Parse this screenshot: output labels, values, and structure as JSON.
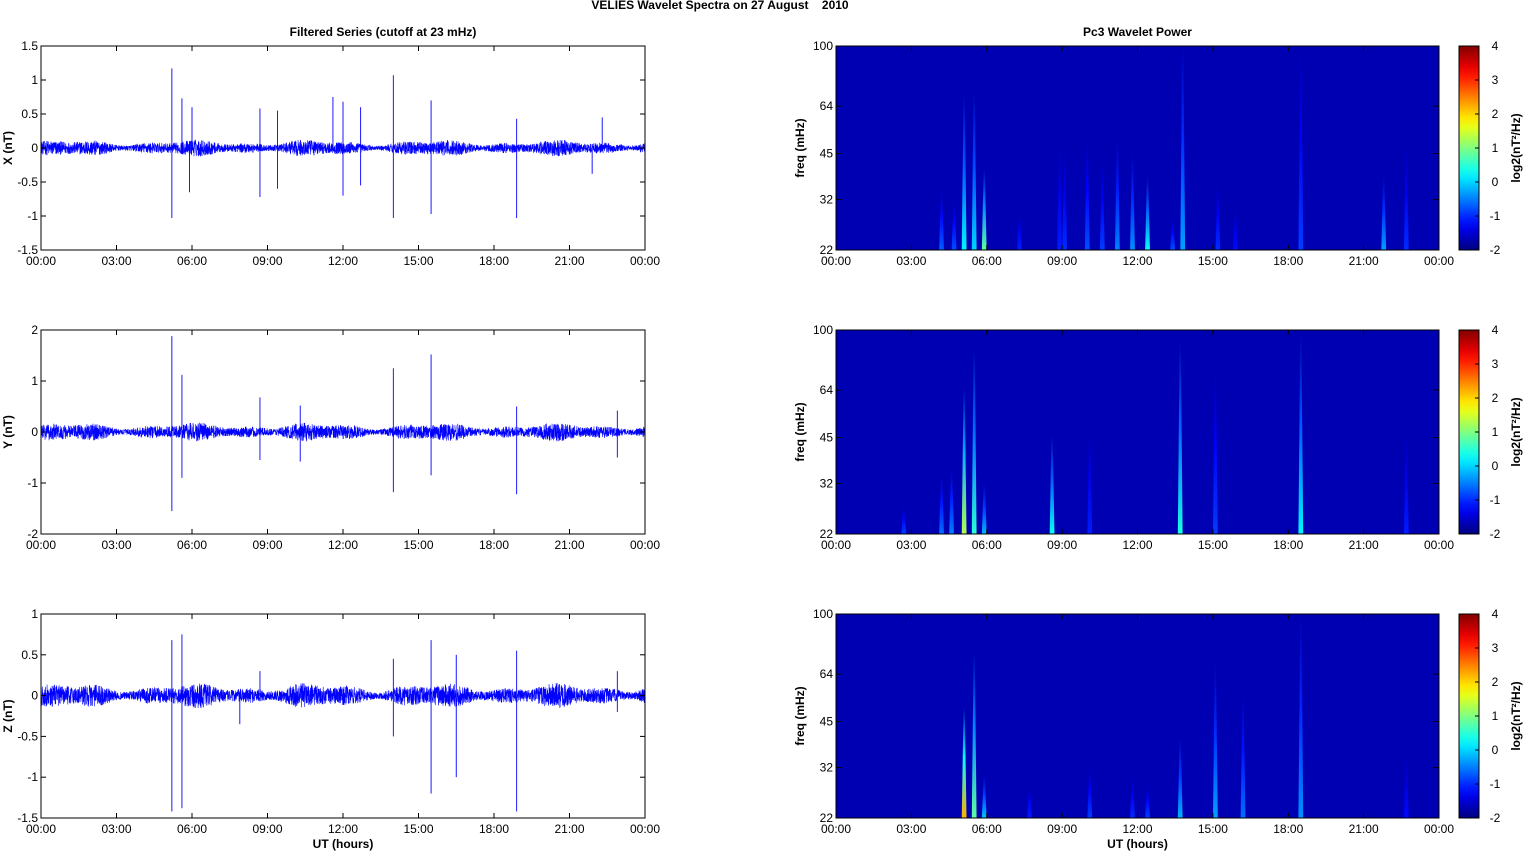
{
  "figure_title": "VELIES Wavelet Spectra on 27 August    2010",
  "chart_data": [
    {
      "type": "line",
      "title": "Filtered Series (cutoff at 23 mHz)",
      "ylabel": "X (nT)",
      "xlabel": "",
      "xlim": [
        0,
        24
      ],
      "ylim": [
        -1.5,
        1.5
      ],
      "yticks": [
        "-1.5",
        "-1",
        "-0.5",
        "0",
        "0.5",
        "1",
        "1.5"
      ],
      "ytick_values": [
        -1.5,
        -1,
        -0.5,
        0,
        0.5,
        1,
        1.5
      ],
      "xticks": [
        "00:00",
        "03:00",
        "06:00",
        "09:00",
        "12:00",
        "15:00",
        "18:00",
        "21:00",
        "00:00"
      ],
      "grid": false,
      "color": "#0000ff",
      "noise_amplitude": 0.08,
      "spikes": [
        {
          "t": 5.2,
          "y": 1.17
        },
        {
          "t": 5.2,
          "y": -1.03
        },
        {
          "t": 5.6,
          "y": 0.73
        },
        {
          "t": 6.0,
          "y": 0.6
        },
        {
          "t": 5.9,
          "y": -0.65
        },
        {
          "t": 8.7,
          "y": 0.58
        },
        {
          "t": 8.7,
          "y": -0.72
        },
        {
          "t": 9.4,
          "y": 0.55
        },
        {
          "t": 9.4,
          "y": -0.6
        },
        {
          "t": 11.6,
          "y": 0.75
        },
        {
          "t": 12.0,
          "y": 0.68
        },
        {
          "t": 12.0,
          "y": -0.7
        },
        {
          "t": 12.7,
          "y": 0.6
        },
        {
          "t": 12.7,
          "y": -0.55
        },
        {
          "t": 14.0,
          "y": 1.07
        },
        {
          "t": 14.0,
          "y": -1.03
        },
        {
          "t": 15.5,
          "y": 0.7
        },
        {
          "t": 15.5,
          "y": -0.97
        },
        {
          "t": 18.9,
          "y": 0.43
        },
        {
          "t": 18.9,
          "y": -1.03
        },
        {
          "t": 22.3,
          "y": 0.45
        },
        {
          "t": 21.9,
          "y": -0.38
        }
      ]
    },
    {
      "type": "line",
      "title": "",
      "ylabel": "Y (nT)",
      "xlabel": "",
      "xlim": [
        0,
        24
      ],
      "ylim": [
        -2,
        2
      ],
      "yticks": [
        "-2",
        "-1",
        "0",
        "1",
        "2"
      ],
      "ytick_values": [
        -2,
        -1,
        0,
        1,
        2
      ],
      "xticks": [
        "00:00",
        "03:00",
        "06:00",
        "09:00",
        "12:00",
        "15:00",
        "18:00",
        "21:00",
        "00:00"
      ],
      "grid": false,
      "color": "#0000ff",
      "noise_amplitude": 0.12,
      "spikes": [
        {
          "t": 5.2,
          "y": 1.88
        },
        {
          "t": 5.2,
          "y": -1.55
        },
        {
          "t": 5.6,
          "y": 1.12
        },
        {
          "t": 5.6,
          "y": -0.9
        },
        {
          "t": 8.7,
          "y": 0.68
        },
        {
          "t": 8.7,
          "y": -0.55
        },
        {
          "t": 10.3,
          "y": 0.52
        },
        {
          "t": 10.3,
          "y": -0.58
        },
        {
          "t": 14.0,
          "y": 1.25
        },
        {
          "t": 14.0,
          "y": -1.18
        },
        {
          "t": 15.5,
          "y": 1.52
        },
        {
          "t": 15.5,
          "y": -0.85
        },
        {
          "t": 18.9,
          "y": 0.5
        },
        {
          "t": 18.9,
          "y": -1.22
        },
        {
          "t": 22.9,
          "y": 0.42
        },
        {
          "t": 22.9,
          "y": -0.5
        }
      ]
    },
    {
      "type": "line",
      "title": "",
      "ylabel": "Z (nT)",
      "xlabel": "UT (hours)",
      "xlim": [
        0,
        24
      ],
      "ylim": [
        -1.5,
        1
      ],
      "yticks": [
        "-1.5",
        "-1",
        "-0.5",
        "0",
        "0.5",
        "1"
      ],
      "ytick_values": [
        -1.5,
        -1,
        -0.5,
        0,
        0.5,
        1
      ],
      "xticks": [
        "00:00",
        "03:00",
        "06:00",
        "09:00",
        "12:00",
        "15:00",
        "18:00",
        "21:00",
        "00:00"
      ],
      "grid": false,
      "color": "#0000ff",
      "noise_amplitude": 0.1,
      "spikes": [
        {
          "t": 5.2,
          "y": 0.68
        },
        {
          "t": 5.2,
          "y": -1.42
        },
        {
          "t": 5.6,
          "y": 0.75
        },
        {
          "t": 5.6,
          "y": -1.38
        },
        {
          "t": 7.9,
          "y": -0.35
        },
        {
          "t": 8.7,
          "y": 0.3
        },
        {
          "t": 14.0,
          "y": 0.45
        },
        {
          "t": 14.0,
          "y": -0.5
        },
        {
          "t": 15.5,
          "y": 0.68
        },
        {
          "t": 15.5,
          "y": -1.2
        },
        {
          "t": 16.5,
          "y": 0.5
        },
        {
          "t": 16.5,
          "y": -1.0
        },
        {
          "t": 18.9,
          "y": 0.55
        },
        {
          "t": 18.9,
          "y": -1.42
        },
        {
          "t": 22.9,
          "y": 0.3
        },
        {
          "t": 22.9,
          "y": -0.2
        }
      ]
    },
    {
      "type": "heatmap",
      "title": "Pc3 Wavelet Power",
      "ylabel": "freq (mHz)",
      "xlabel": "",
      "xlim": [
        0,
        24
      ],
      "ylim": [
        22,
        100
      ],
      "yscale": "log",
      "yticks": [
        "22",
        "32",
        "45",
        "64",
        "100"
      ],
      "ytick_values": [
        22,
        32,
        45,
        64,
        100
      ],
      "xticks": [
        "00:00",
        "03:00",
        "06:00",
        "09:00",
        "12:00",
        "15:00",
        "18:00",
        "21:00",
        "00:00"
      ],
      "colorbar": {
        "label": "log2(nT²/Hz)",
        "range": [
          -2,
          4
        ],
        "ticks": [
          "-2",
          "-1",
          "0",
          "1",
          "2",
          "3",
          "4"
        ],
        "tick_values": [
          -2,
          -1,
          0,
          1,
          2,
          3,
          4
        ]
      },
      "background_value": -1.7,
      "streaks": [
        {
          "t": 4.2,
          "f_top": 34,
          "peak": -0.7
        },
        {
          "t": 4.7,
          "f_top": 32,
          "peak": -0.8
        },
        {
          "t": 5.1,
          "f_top": 70,
          "peak": 0.2
        },
        {
          "t": 5.5,
          "f_top": 72,
          "peak": 0.0
        },
        {
          "t": 5.9,
          "f_top": 40,
          "peak": 0.8
        },
        {
          "t": 7.3,
          "f_top": 29,
          "peak": -1.1
        },
        {
          "t": 8.9,
          "f_top": 48,
          "peak": -1.1
        },
        {
          "t": 9.1,
          "f_top": 46,
          "peak": -1.0
        },
        {
          "t": 10.0,
          "f_top": 50,
          "peak": -0.8
        },
        {
          "t": 10.6,
          "f_top": 42,
          "peak": -0.9
        },
        {
          "t": 11.2,
          "f_top": 50,
          "peak": -0.5
        },
        {
          "t": 11.8,
          "f_top": 45,
          "peak": -0.4
        },
        {
          "t": 12.4,
          "f_top": 38,
          "peak": 0.3
        },
        {
          "t": 13.4,
          "f_top": 28,
          "peak": -0.8
        },
        {
          "t": 13.8,
          "f_top": 100,
          "peak": -0.3
        },
        {
          "t": 15.2,
          "f_top": 36,
          "peak": -1.0
        },
        {
          "t": 15.9,
          "f_top": 30,
          "peak": -1.2
        },
        {
          "t": 18.5,
          "f_top": 100,
          "peak": -0.9
        },
        {
          "t": 21.8,
          "f_top": 38,
          "peak": -0.3
        },
        {
          "t": 22.7,
          "f_top": 47,
          "peak": -1.0
        }
      ]
    },
    {
      "type": "heatmap",
      "title": "",
      "ylabel": "freq (mHz)",
      "xlabel": "",
      "xlim": [
        0,
        24
      ],
      "ylim": [
        22,
        100
      ],
      "yscale": "log",
      "yticks": [
        "22",
        "32",
        "45",
        "64",
        "100"
      ],
      "ytick_values": [
        22,
        32,
        45,
        64,
        100
      ],
      "xticks": [
        "00:00",
        "03:00",
        "06:00",
        "09:00",
        "12:00",
        "15:00",
        "18:00",
        "21:00",
        "00:00"
      ],
      "colorbar": {
        "label": "log2(nT²/Hz)",
        "range": [
          -2,
          4
        ],
        "ticks": [
          "-2",
          "-1",
          "0",
          "1",
          "2",
          "3",
          "4"
        ],
        "tick_values": [
          -2,
          -1,
          0,
          1,
          2,
          3,
          4
        ]
      },
      "background_value": -1.7,
      "streaks": [
        {
          "t": 2.7,
          "f_top": 27,
          "peak": -0.9
        },
        {
          "t": 4.2,
          "f_top": 34,
          "peak": -0.6
        },
        {
          "t": 4.6,
          "f_top": 36,
          "peak": -0.5
        },
        {
          "t": 5.1,
          "f_top": 65,
          "peak": 1.3
        },
        {
          "t": 5.5,
          "f_top": 88,
          "peak": 0.5
        },
        {
          "t": 5.9,
          "f_top": 32,
          "peak": -0.2
        },
        {
          "t": 8.6,
          "f_top": 46,
          "peak": 0.3
        },
        {
          "t": 10.1,
          "f_top": 48,
          "peak": -1.1
        },
        {
          "t": 13.7,
          "f_top": 92,
          "peak": 0.4
        },
        {
          "t": 15.1,
          "f_top": 75,
          "peak": -0.9
        },
        {
          "t": 18.5,
          "f_top": 97,
          "peak": 0.2
        },
        {
          "t": 22.7,
          "f_top": 47,
          "peak": -1.1
        }
      ]
    },
    {
      "type": "heatmap",
      "title": "",
      "ylabel": "freq (mHz)",
      "xlabel": "UT (hours)",
      "xlim": [
        0,
        24
      ],
      "ylim": [
        22,
        100
      ],
      "yscale": "log",
      "yticks": [
        "22",
        "32",
        "45",
        "64",
        "100"
      ],
      "ytick_values": [
        22,
        32,
        45,
        64,
        100
      ],
      "xticks": [
        "00:00",
        "03:00",
        "06:00",
        "09:00",
        "12:00",
        "15:00",
        "18:00",
        "21:00",
        "00:00"
      ],
      "colorbar": {
        "label": "log2(nT²/Hz)",
        "range": [
          -2,
          4
        ],
        "ticks": [
          "-2",
          "-1",
          "0",
          "1",
          "2",
          "3",
          "4"
        ],
        "tick_values": [
          -2,
          -1,
          0,
          1,
          2,
          3,
          4
        ]
      },
      "background_value": -1.7,
      "streaks": [
        {
          "t": 5.1,
          "f_top": 50,
          "peak": 2.2
        },
        {
          "t": 5.5,
          "f_top": 75,
          "peak": 0.8
        },
        {
          "t": 5.9,
          "f_top": 30,
          "peak": -0.1
        },
        {
          "t": 7.7,
          "f_top": 28,
          "peak": -1.1
        },
        {
          "t": 10.1,
          "f_top": 32,
          "peak": -0.9
        },
        {
          "t": 11.8,
          "f_top": 30,
          "peak": -1.0
        },
        {
          "t": 12.4,
          "f_top": 28,
          "peak": -0.9
        },
        {
          "t": 13.7,
          "f_top": 40,
          "peak": -0.2
        },
        {
          "t": 15.1,
          "f_top": 70,
          "peak": -0.3
        },
        {
          "t": 16.2,
          "f_top": 55,
          "peak": -0.6
        },
        {
          "t": 18.5,
          "f_top": 100,
          "peak": -0.4
        },
        {
          "t": 22.7,
          "f_top": 35,
          "peak": -1.2
        }
      ]
    }
  ]
}
